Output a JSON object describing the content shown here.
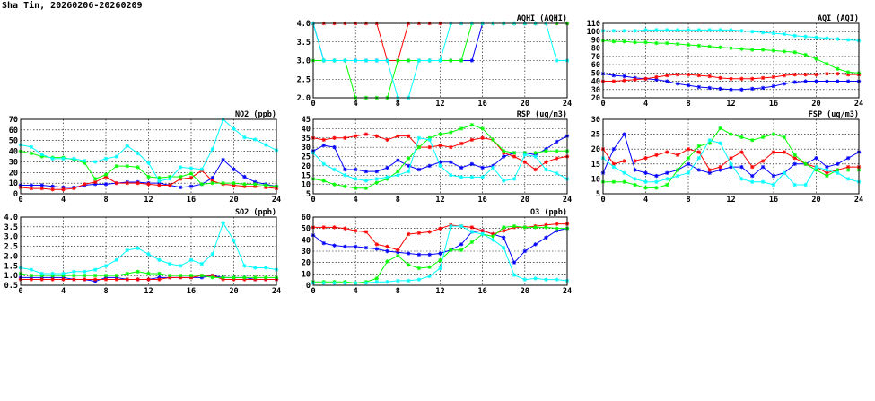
{
  "page": {
    "title": "Sha Tin, 20260206-20260209"
  },
  "colors": {
    "blue": "#0000ff",
    "red": "#ff0000",
    "green": "#00ff00",
    "cyan": "#00ffff",
    "grid": "#000000"
  },
  "chart_data": [
    {
      "id": "aqhi",
      "type": "line",
      "title": "AQHI (AQHI)",
      "xlim": [
        0,
        24
      ],
      "xticks": [
        0,
        4,
        8,
        12,
        16,
        20,
        24
      ],
      "ylim": [
        2.0,
        4.0
      ],
      "yticks": [
        "2.0",
        "2.5",
        "3.0",
        "3.5",
        "4.0"
      ],
      "grid": true,
      "series": [
        {
          "color": "blue",
          "values": [
            4,
            3,
            3,
            3,
            3,
            3,
            3,
            3,
            3,
            3,
            3,
            3,
            3,
            3,
            3,
            3,
            4,
            4,
            4,
            4,
            4,
            4,
            4,
            4,
            4
          ]
        },
        {
          "color": "red",
          "values": [
            4,
            4,
            4,
            4,
            4,
            4,
            4,
            3,
            3,
            4,
            4,
            4,
            4,
            4,
            4,
            4,
            4,
            4,
            4,
            4,
            4,
            4,
            4,
            4,
            4
          ]
        },
        {
          "color": "green",
          "values": [
            3,
            3,
            3,
            3,
            2,
            2,
            2,
            2,
            3,
            3,
            3,
            3,
            3,
            3,
            3,
            4,
            4,
            4,
            4,
            4,
            4,
            4,
            4,
            4,
            4
          ]
        },
        {
          "color": "cyan",
          "values": [
            4,
            3,
            3,
            3,
            3,
            3,
            3,
            3,
            2,
            2,
            3,
            3,
            3,
            4,
            4,
            4,
            4,
            4,
            4,
            4,
            4,
            4,
            4,
            3,
            3
          ]
        }
      ]
    },
    {
      "id": "aqi",
      "type": "line",
      "title": "AQI (AQI)",
      "xlim": [
        0,
        24
      ],
      "xticks": [
        0,
        4,
        8,
        12,
        16,
        20,
        24
      ],
      "ylim": [
        20,
        110
      ],
      "yticks": [
        "20",
        "30",
        "40",
        "50",
        "60",
        "70",
        "80",
        "90",
        "100",
        "110"
      ],
      "grid": true,
      "series": [
        {
          "color": "blue",
          "values": [
            49,
            47,
            46,
            44,
            43,
            42,
            40,
            37,
            35,
            33,
            32,
            31,
            30,
            30,
            31,
            32,
            34,
            37,
            39,
            40,
            40,
            40,
            40,
            40,
            40
          ]
        },
        {
          "color": "red",
          "values": [
            40,
            40,
            41,
            42,
            43,
            45,
            47,
            48,
            48,
            47,
            46,
            44,
            43,
            43,
            43,
            44,
            45,
            47,
            48,
            48,
            48,
            49,
            49,
            48,
            48
          ]
        },
        {
          "color": "green",
          "values": [
            89,
            88,
            88,
            87,
            87,
            86,
            86,
            85,
            84,
            83,
            82,
            81,
            80,
            79,
            78,
            78,
            77,
            76,
            75,
            72,
            67,
            61,
            55,
            51,
            50
          ]
        },
        {
          "color": "cyan",
          "values": [
            101,
            101,
            101,
            101,
            102,
            102,
            102,
            102,
            102,
            102,
            102,
            102,
            102,
            101,
            100,
            99,
            98,
            97,
            95,
            94,
            93,
            92,
            91,
            90,
            89
          ]
        }
      ]
    },
    {
      "id": "no2",
      "type": "line",
      "title": "NO2 (ppb)",
      "xlim": [
        0,
        24
      ],
      "xticks": [
        0,
        4,
        8,
        12,
        16,
        20,
        24
      ],
      "ylim": [
        0,
        70
      ],
      "yticks": [
        "0",
        "10",
        "20",
        "30",
        "40",
        "50",
        "60",
        "70"
      ],
      "grid": true,
      "series": [
        {
          "color": "blue",
          "values": [
            8,
            8,
            8,
            7,
            6,
            6,
            8,
            9,
            9,
            10,
            11,
            11,
            10,
            10,
            8,
            6,
            7,
            9,
            15,
            32,
            23,
            16,
            11,
            9,
            7
          ]
        },
        {
          "color": "red",
          "values": [
            6,
            5,
            5,
            4,
            4,
            5,
            9,
            11,
            16,
            10,
            10,
            10,
            9,
            8,
            8,
            14,
            15,
            22,
            12,
            9,
            8,
            7,
            7,
            6,
            5
          ]
        },
        {
          "color": "green",
          "values": [
            40,
            38,
            35,
            34,
            34,
            32,
            29,
            14,
            18,
            26,
            26,
            25,
            16,
            15,
            16,
            16,
            19,
            9,
            10,
            10,
            10,
            9,
            9,
            8,
            7
          ]
        },
        {
          "color": "cyan",
          "values": [
            46,
            44,
            37,
            33,
            33,
            33,
            31,
            30,
            33,
            35,
            45,
            38,
            29,
            12,
            14,
            25,
            24,
            23,
            42,
            70,
            61,
            53,
            51,
            46,
            41
          ]
        }
      ]
    },
    {
      "id": "rsp",
      "type": "line",
      "title": "RSP (ug/m3)",
      "xlim": [
        0,
        24
      ],
      "xticks": [
        0,
        4,
        8,
        12,
        16,
        20,
        24
      ],
      "ylim": [
        5,
        45
      ],
      "yticks": [
        "5",
        "10",
        "15",
        "20",
        "25",
        "30",
        "35",
        "40",
        "45"
      ],
      "grid": true,
      "series": [
        {
          "color": "blue",
          "values": [
            28,
            31,
            30,
            18,
            18,
            17,
            17,
            19,
            23,
            20,
            18,
            20,
            22,
            22,
            19,
            21,
            19,
            20,
            25,
            27,
            27,
            26,
            29,
            33,
            36
          ]
        },
        {
          "color": "red",
          "values": [
            35,
            34,
            35,
            35,
            36,
            37,
            36,
            34,
            36,
            36,
            30,
            30,
            31,
            30,
            32,
            34,
            35,
            34,
            27,
            25,
            22,
            18,
            22,
            24,
            25
          ]
        },
        {
          "color": "green",
          "values": [
            13,
            12,
            10,
            9,
            8,
            8,
            11,
            13,
            17,
            24,
            30,
            35,
            37,
            38,
            40,
            42,
            40,
            34,
            28,
            27,
            27,
            27,
            28,
            28,
            28
          ]
        },
        {
          "color": "cyan",
          "values": [
            27,
            21,
            18,
            15,
            13,
            12,
            13,
            14,
            15,
            17,
            35,
            34,
            20,
            15,
            14,
            14,
            14,
            19,
            12,
            13,
            26,
            25,
            18,
            16,
            13
          ]
        }
      ]
    },
    {
      "id": "fsp",
      "type": "line",
      "title": "FSP (ug/m3)",
      "xlim": [
        0,
        24
      ],
      "xticks": [
        0,
        4,
        8,
        12,
        16,
        20,
        24
      ],
      "ylim": [
        5,
        30
      ],
      "yticks": [
        "5",
        "10",
        "15",
        "20",
        "25",
        "30"
      ],
      "grid": true,
      "series": [
        {
          "color": "blue",
          "values": [
            12,
            20,
            25,
            13,
            12,
            11,
            12,
            13,
            15,
            13,
            12,
            13,
            14,
            14,
            11,
            14,
            11,
            12,
            15,
            15,
            17,
            14,
            15,
            17,
            19
          ]
        },
        {
          "color": "red",
          "values": [
            20,
            15,
            16,
            16,
            17,
            18,
            19,
            18,
            20,
            19,
            13,
            14,
            17,
            19,
            14,
            16,
            19,
            19,
            17,
            15,
            14,
            12,
            13,
            14,
            14
          ]
        },
        {
          "color": "green",
          "values": [
            9,
            9,
            9,
            8,
            7,
            7,
            8,
            13,
            17,
            21,
            22,
            27,
            25,
            24,
            23,
            24,
            25,
            24,
            18,
            15,
            13,
            11,
            13,
            13,
            13
          ]
        },
        {
          "color": "cyan",
          "values": [
            17,
            14,
            12,
            10,
            9,
            9,
            10,
            11,
            12,
            17,
            23,
            22,
            15,
            10,
            9,
            9,
            8,
            12,
            8,
            8,
            14,
            13,
            12,
            10,
            9
          ]
        }
      ]
    },
    {
      "id": "so2",
      "type": "line",
      "title": "SO2 (ppb)",
      "xlim": [
        0,
        24
      ],
      "xticks": [
        0,
        4,
        8,
        12,
        16,
        20,
        24
      ],
      "ylim": [
        0.5,
        4.0
      ],
      "yticks": [
        "0.5",
        "1.0",
        "1.5",
        "2.0",
        "2.5",
        "3.0",
        "3.5",
        "4.0"
      ],
      "grid": true,
      "series": [
        {
          "color": "blue",
          "values": [
            0.9,
            0.9,
            0.9,
            0.9,
            0.9,
            0.8,
            0.8,
            0.7,
            0.9,
            0.9,
            0.8,
            0.8,
            0.8,
            0.9,
            0.9,
            0.9,
            0.9,
            0.9,
            1.0,
            0.9,
            0.9,
            0.9,
            0.8,
            0.8,
            0.8
          ]
        },
        {
          "color": "red",
          "values": [
            0.8,
            0.8,
            0.8,
            0.8,
            0.8,
            0.8,
            0.8,
            0.8,
            0.8,
            0.8,
            0.8,
            0.8,
            0.8,
            0.8,
            0.9,
            0.9,
            0.9,
            1.0,
            1.0,
            0.8,
            0.8,
            0.8,
            0.8,
            0.8,
            0.8
          ]
        },
        {
          "color": "green",
          "values": [
            1.1,
            1.0,
            1.0,
            1.0,
            1.0,
            1.0,
            1.0,
            1.0,
            1.0,
            1.0,
            1.1,
            1.2,
            1.1,
            1.1,
            1.0,
            1.0,
            1.0,
            1.0,
            0.9,
            0.9,
            0.9,
            0.9,
            0.9,
            0.9,
            0.9
          ]
        },
        {
          "color": "cyan",
          "values": [
            1.4,
            1.3,
            1.1,
            1.1,
            1.1,
            1.2,
            1.2,
            1.3,
            1.5,
            1.8,
            2.3,
            2.4,
            2.1,
            1.8,
            1.6,
            1.5,
            1.8,
            1.6,
            2.1,
            3.7,
            2.8,
            1.5,
            1.4,
            1.4,
            1.3
          ]
        }
      ]
    },
    {
      "id": "o3",
      "type": "line",
      "title": "O3 (ppb)",
      "xlim": [
        0,
        24
      ],
      "xticks": [
        0,
        4,
        8,
        12,
        16,
        20,
        24
      ],
      "ylim": [
        0,
        60
      ],
      "yticks": [
        "0",
        "10",
        "20",
        "30",
        "40",
        "50",
        "60"
      ],
      "grid": true,
      "series": [
        {
          "color": "blue",
          "values": [
            44,
            37,
            35,
            34,
            34,
            33,
            32,
            30,
            29,
            28,
            27,
            27,
            28,
            31,
            36,
            47,
            48,
            45,
            42,
            20,
            30,
            36,
            42,
            48,
            50
          ]
        },
        {
          "color": "red",
          "values": [
            51,
            51,
            51,
            50,
            48,
            47,
            36,
            34,
            31,
            45,
            46,
            47,
            50,
            53,
            52,
            51,
            48,
            45,
            48,
            51,
            51,
            52,
            53,
            54,
            54
          ]
        },
        {
          "color": "green",
          "values": [
            3,
            3,
            3,
            3,
            2,
            3,
            6,
            21,
            26,
            18,
            15,
            16,
            22,
            31,
            31,
            38,
            45,
            43,
            51,
            52,
            51,
            51,
            51,
            50,
            50
          ]
        },
        {
          "color": "cyan",
          "values": [
            2,
            2,
            2,
            2,
            2,
            2,
            3,
            3,
            4,
            4,
            5,
            8,
            15,
            52,
            52,
            47,
            45,
            40,
            33,
            9,
            5,
            6,
            5,
            5,
            4
          ]
        }
      ]
    }
  ]
}
